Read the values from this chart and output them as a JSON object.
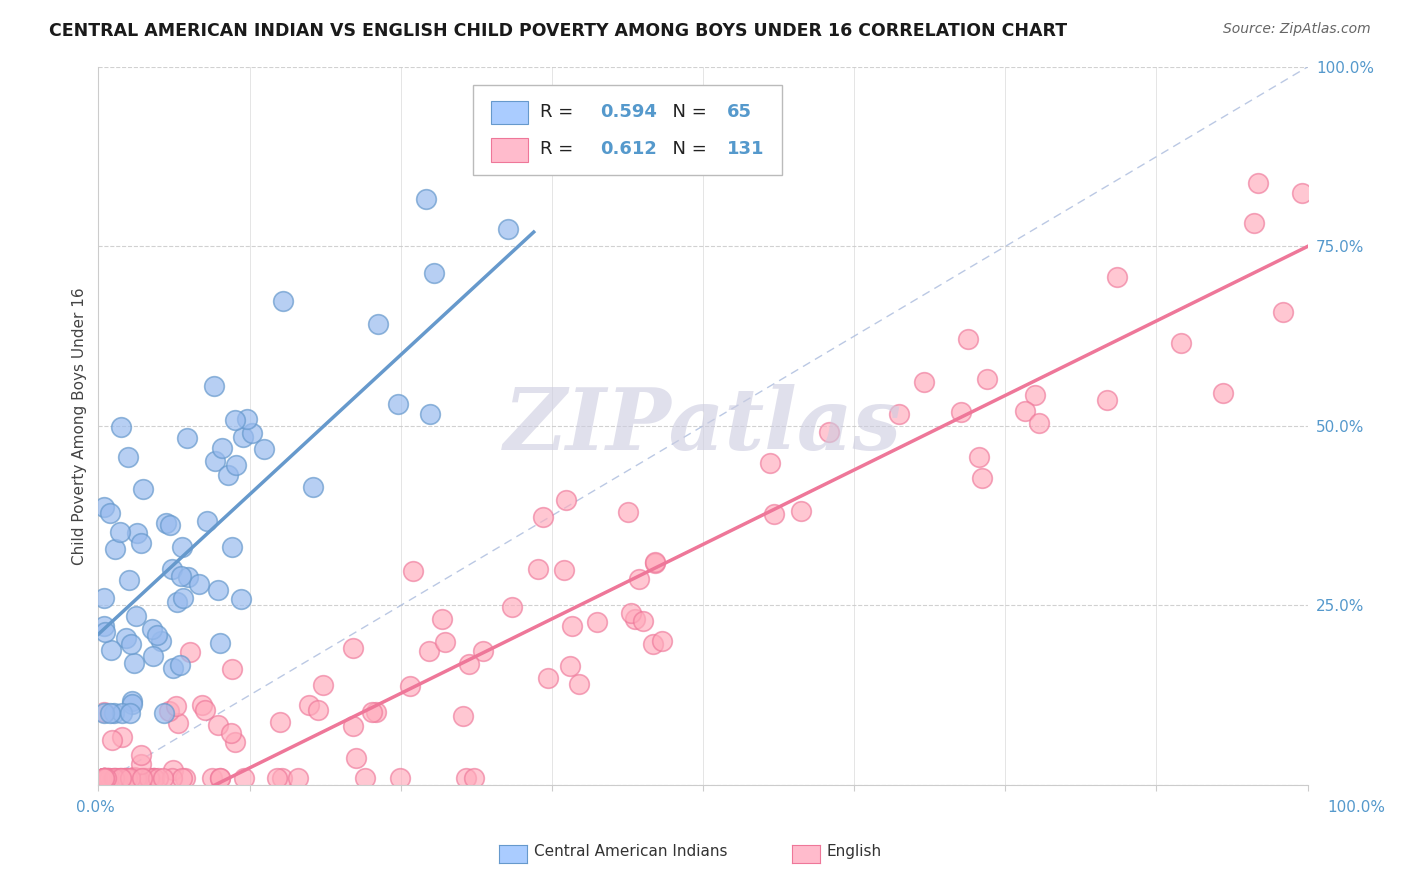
{
  "title": "CENTRAL AMERICAN INDIAN VS ENGLISH CHILD POVERTY AMONG BOYS UNDER 16 CORRELATION CHART",
  "source": "Source: ZipAtlas.com",
  "ylabel": "Child Poverty Among Boys Under 16",
  "xlim": [
    0,
    1
  ],
  "ylim": [
    0,
    1
  ],
  "blue_R": "0.594",
  "blue_N": "65",
  "pink_R": "0.612",
  "pink_N": "131",
  "blue_color": "#6699CC",
  "pink_color": "#EE7799",
  "blue_fill": "#99BBEE",
  "pink_fill": "#FFAABB",
  "blue_legend_fill": "#AACCFF",
  "pink_legend_fill": "#FFBBCC",
  "diagonal_color": "#AABBDD",
  "watermark_color": "#CCCCE0",
  "background_color": "#FFFFFF",
  "grid_color": "#CCCCCC",
  "ytick_color": "#5599CC",
  "xtick_color": "#5599CC"
}
